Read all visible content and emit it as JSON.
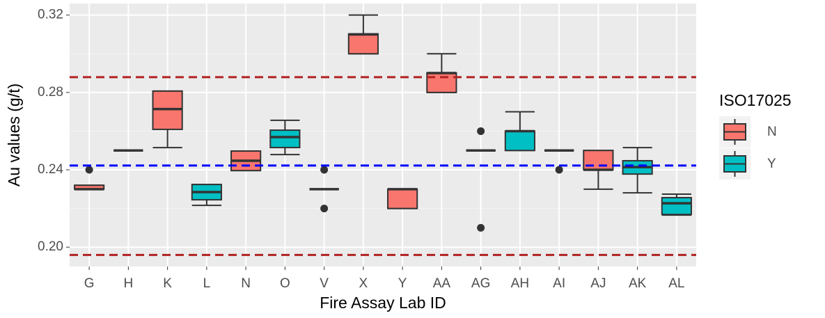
{
  "chart_data": {
    "type": "box",
    "x_label": "Fire Assay Lab ID",
    "y_label": "Au values (g/t)",
    "categories": [
      "G",
      "H",
      "K",
      "L",
      "N",
      "O",
      "V",
      "X",
      "Y",
      "AA",
      "AG",
      "AH",
      "AI",
      "AJ",
      "AK",
      "AL"
    ],
    "groups": [
      "N",
      "N",
      "N",
      "Y",
      "N",
      "Y",
      "N",
      "N",
      "N",
      "N",
      "N",
      "Y",
      "N",
      "N",
      "Y",
      "Y"
    ],
    "min": [
      0.23,
      0.25,
      0.2515,
      0.2216,
      0.2396,
      0.2479,
      0.23,
      0.3,
      0.22,
      0.28,
      0.25,
      0.25,
      0.25,
      0.23,
      0.2281,
      0.2166
    ],
    "q1": [
      0.23,
      0.25,
      0.2609,
      0.2245,
      0.2396,
      0.2515,
      0.23,
      0.3,
      0.22,
      0.28,
      0.25,
      0.25,
      0.25,
      0.24,
      0.2378,
      0.2169
    ],
    "median": [
      0.23,
      0.25,
      0.2714,
      0.2285,
      0.2447,
      0.2569,
      0.23,
      0.31,
      0.23,
      0.29,
      0.25,
      0.26,
      0.25,
      0.24,
      0.2414,
      0.2227
    ],
    "q3": [
      0.232,
      0.25,
      0.2807,
      0.2324,
      0.2497,
      0.2605,
      0.23,
      0.3103,
      0.23,
      0.2901,
      0.25,
      0.26,
      0.25,
      0.25,
      0.2447,
      0.2256
    ],
    "max": [
      0.232,
      0.25,
      0.2807,
      0.2324,
      0.2497,
      0.2656,
      0.23,
      0.32,
      0.23,
      0.3,
      0.25,
      0.27,
      0.25,
      0.25,
      0.2515,
      0.2274
    ],
    "outliers": [
      [
        0.24
      ],
      [],
      [],
      [],
      [],
      [],
      [
        0.24,
        0.22
      ],
      [],
      [],
      [],
      [
        0.26,
        0.21
      ],
      [],
      [
        0.24
      ],
      [],
      [],
      []
    ],
    "legend": {
      "title": "ISO17025",
      "entries": [
        {
          "name": "N",
          "color": "#F8766D"
        },
        {
          "name": "Y",
          "color": "#00BFC4"
        }
      ]
    },
    "hlines": [
      {
        "value": 0.2879,
        "color": "#B22222"
      },
      {
        "value": 0.2422,
        "color": "#0000FF"
      },
      {
        "value": 0.196,
        "color": "#B22222"
      }
    ],
    "ylim": [
      0.19,
      0.326
    ],
    "yticks": [
      {
        "value": 0.2,
        "label": "0.20"
      },
      {
        "value": 0.24,
        "label": "0.24"
      },
      {
        "value": 0.28,
        "label": "0.28"
      },
      {
        "value": 0.32,
        "label": "0.32"
      }
    ],
    "yminor": [
      0.22,
      0.26,
      0.3
    ],
    "grid": true
  }
}
